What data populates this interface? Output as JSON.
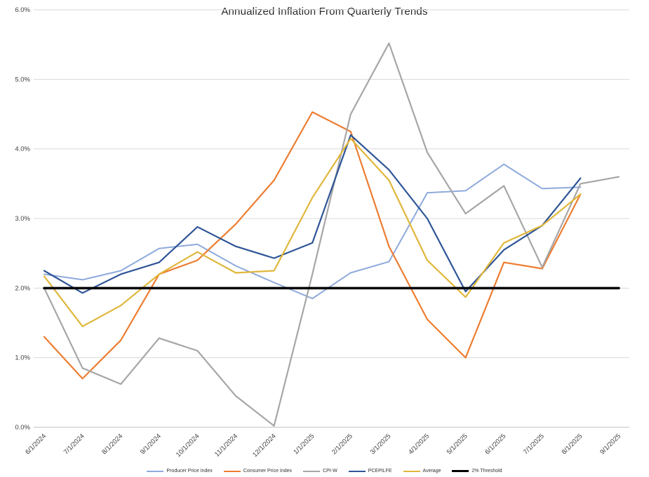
{
  "chart": {
    "title": "Annualized Inflation From Quarterly Trends"
  },
  "chart_data": {
    "type": "line",
    "title": "Annualized Inflation From Quarterly Trends",
    "xlabel": "",
    "ylabel": "",
    "ylim": [
      0,
      6
    ],
    "ytick_step": 1,
    "ytick_labels": [
      "0.0%",
      "1.0%",
      "2.0%",
      "3.0%",
      "4.0%",
      "5.0%",
      "6.0%"
    ],
    "grid": "horizontal",
    "legend_position": "bottom",
    "categories": [
      "6/1/2024",
      "7/1/2024",
      "8/1/2024",
      "9/1/2024",
      "10/1/2024",
      "11/1/2024",
      "12/1/2024",
      "1/1/2025",
      "2/1/2025",
      "3/1/2025",
      "4/1/2025",
      "5/1/2025",
      "6/1/2025",
      "7/1/2025",
      "8/1/2025",
      "9/1/2025"
    ],
    "series": [
      {
        "name": "Producer Price Index",
        "color": "#8EAADC",
        "width": 2,
        "values": [
          2.2,
          2.12,
          2.25,
          2.57,
          2.63,
          2.32,
          2.08,
          1.85,
          2.22,
          2.38,
          3.37,
          3.4,
          3.78,
          3.43,
          3.45,
          null
        ]
      },
      {
        "name": "Consumer Price Index",
        "color": "#ED7D31",
        "width": 2.2,
        "values": [
          1.3,
          0.7,
          1.25,
          2.2,
          2.4,
          2.92,
          3.55,
          4.53,
          4.25,
          2.6,
          1.55,
          1.0,
          2.37,
          2.28,
          3.35,
          null
        ]
      },
      {
        "name": "CPI-W",
        "color": "#A6A6A6",
        "width": 2.2,
        "values": [
          2.0,
          0.85,
          0.62,
          1.28,
          1.1,
          0.45,
          0.02,
          2.2,
          4.5,
          5.52,
          3.95,
          3.07,
          3.47,
          2.3,
          3.5,
          3.6
        ]
      },
      {
        "name": "PCEPILFE",
        "color": "#2F5597",
        "width": 2.2,
        "values": [
          2.25,
          1.93,
          2.2,
          2.37,
          2.88,
          2.6,
          2.43,
          2.65,
          4.2,
          3.7,
          3.0,
          1.95,
          2.55,
          2.9,
          3.58,
          null
        ]
      },
      {
        "name": "Average",
        "color": "#E0B73B",
        "width": 2.2,
        "values": [
          2.17,
          1.45,
          1.75,
          2.2,
          2.52,
          2.22,
          2.25,
          3.3,
          4.15,
          3.55,
          2.4,
          1.87,
          2.65,
          2.9,
          3.35,
          null
        ]
      },
      {
        "name": "2% Threshold",
        "color": "#000000",
        "width": 3.5,
        "values": [
          2,
          2,
          2,
          2,
          2,
          2,
          2,
          2,
          2,
          2,
          2,
          2,
          2,
          2,
          2,
          2
        ]
      }
    ]
  }
}
